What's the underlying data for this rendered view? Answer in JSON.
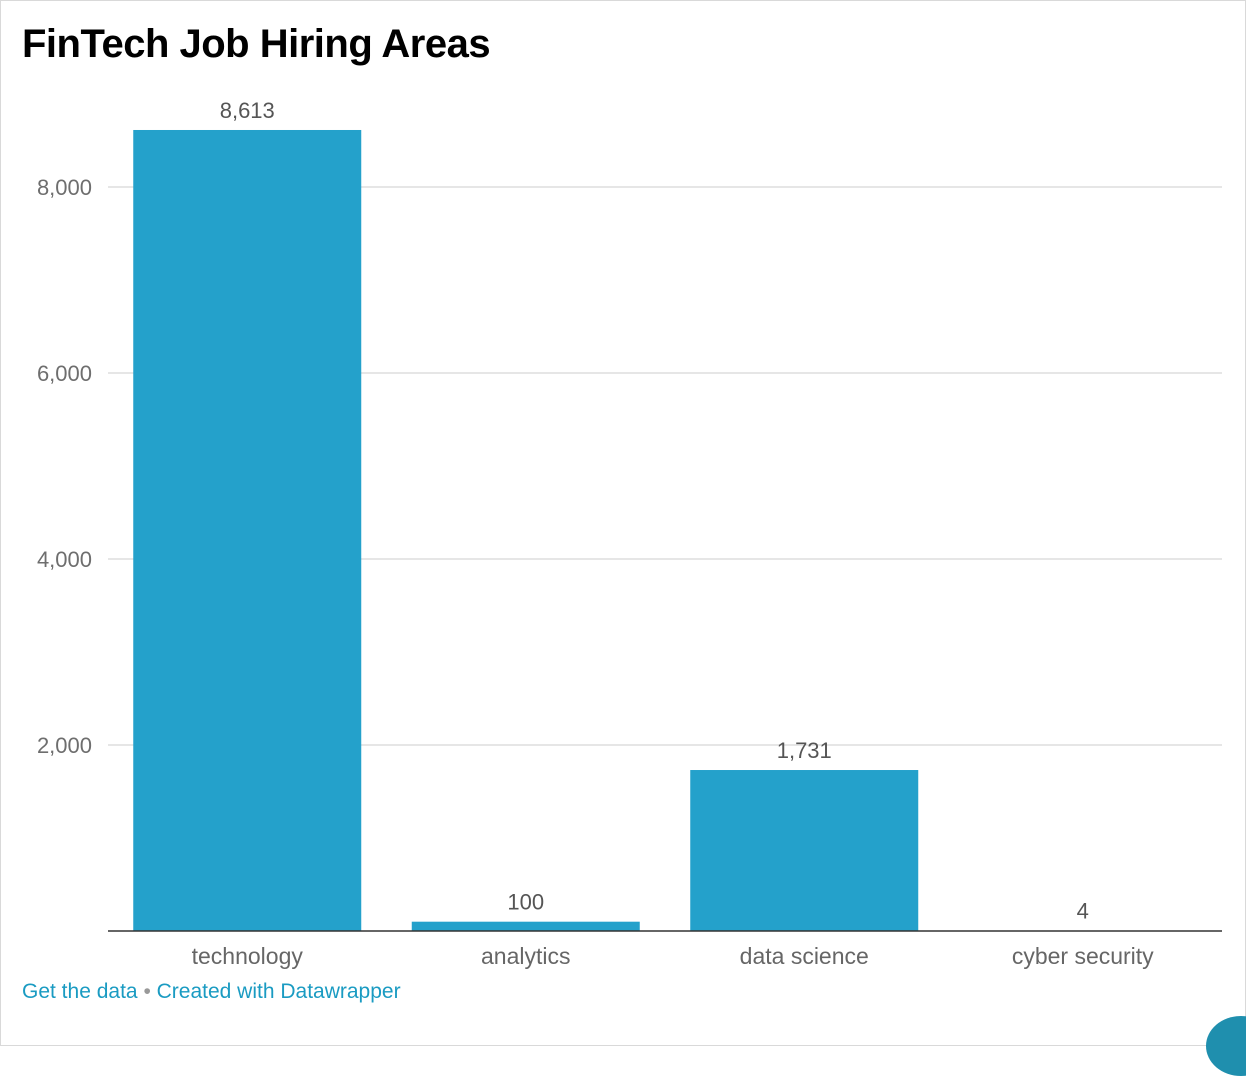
{
  "footer": {
    "get_data_label": "Get the data",
    "separator": "•",
    "created_with_label": "Created with Datawrapper"
  },
  "chart_data": {
    "type": "bar",
    "title": "FinTech Job Hiring Areas",
    "xlabel": "",
    "ylabel": "",
    "categories": [
      "technology",
      "analytics",
      "data science",
      "cyber security"
    ],
    "values": [
      8613,
      100,
      1731,
      4
    ],
    "value_labels": [
      "8,613",
      "100",
      "1,731",
      "4"
    ],
    "yticks": [
      2000,
      4000,
      6000,
      8000
    ],
    "ytick_labels": [
      "2,000",
      "4,000",
      "6,000",
      "8,000"
    ],
    "ylim": [
      0,
      9200
    ],
    "grid": true,
    "bar_color": "#24a1cb"
  }
}
